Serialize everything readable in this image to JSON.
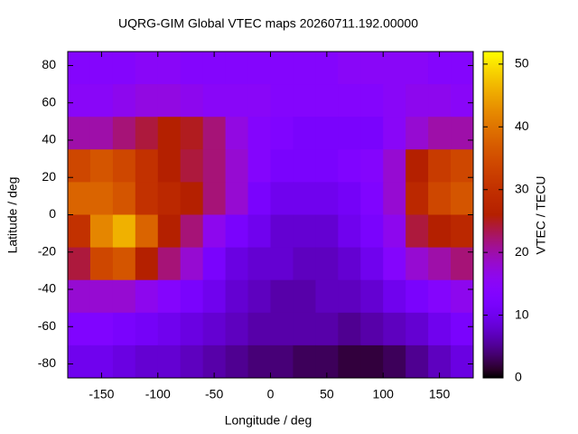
{
  "chart_data": {
    "type": "heatmap",
    "title": "UQRG-GIM Global VTEC maps 20260711.192.00000",
    "x_label": "Longitude / deg",
    "y_label": "Latitude / deg",
    "colorbar_label": "VTEC / TECU",
    "x": [
      -170,
      -150,
      -130,
      -110,
      -90,
      -70,
      -50,
      -30,
      -10,
      10,
      30,
      50,
      70,
      90,
      110,
      130,
      150,
      170
    ],
    "y": [
      78.75,
      61.25,
      43.75,
      26.25,
      8.75,
      -8.75,
      -26.25,
      -43.75,
      -61.25,
      -78.75
    ],
    "values": [
      [
        14,
        14,
        14,
        15,
        15,
        14,
        14,
        14,
        14,
        14,
        14,
        14,
        15,
        15,
        15,
        15,
        14,
        14
      ],
      [
        15,
        15,
        16,
        17,
        17,
        16,
        15,
        15,
        15,
        14,
        14,
        14,
        14,
        14,
        15,
        16,
        16,
        15
      ],
      [
        20,
        20,
        22,
        24,
        26,
        25,
        22,
        17,
        14,
        13,
        12,
        12,
        12,
        12,
        15,
        18,
        20,
        20
      ],
      [
        34,
        36,
        34,
        30,
        26,
        24,
        22,
        18,
        14,
        12,
        12,
        12,
        13,
        14,
        18,
        26,
        32,
        34
      ],
      [
        38,
        38,
        36,
        30,
        28,
        26,
        22,
        18,
        12,
        10,
        10,
        10,
        11,
        13,
        18,
        28,
        34,
        36
      ],
      [
        30,
        42,
        46,
        38,
        26,
        22,
        16,
        12,
        10,
        8,
        8,
        8,
        10,
        12,
        16,
        24,
        26,
        28
      ],
      [
        24,
        34,
        36,
        26,
        22,
        18,
        12,
        9,
        8,
        8,
        7,
        7,
        8,
        10,
        14,
        18,
        20,
        22
      ],
      [
        18,
        18,
        18,
        16,
        14,
        12,
        10,
        8,
        7,
        6,
        6,
        7,
        7,
        8,
        10,
        12,
        14,
        16
      ],
      [
        13,
        13,
        12,
        11,
        10,
        9,
        8,
        7,
        6,
        6,
        6,
        6,
        5,
        6,
        7,
        8,
        10,
        12
      ],
      [
        10,
        10,
        9,
        8,
        8,
        7,
        6,
        5,
        4,
        4,
        3,
        3,
        2,
        2,
        3,
        5,
        7,
        9
      ]
    ],
    "xlim": [
      -180,
      180
    ],
    "ylim": [
      -87.5,
      87.5
    ],
    "xticks": [
      -150,
      -100,
      -50,
      0,
      50,
      100,
      150
    ],
    "yticks": [
      -80,
      -60,
      -40,
      -20,
      0,
      20,
      40,
      60,
      80
    ],
    "zlim": [
      0,
      52
    ],
    "zticks": [
      0,
      10,
      20,
      30,
      40,
      50
    ]
  }
}
